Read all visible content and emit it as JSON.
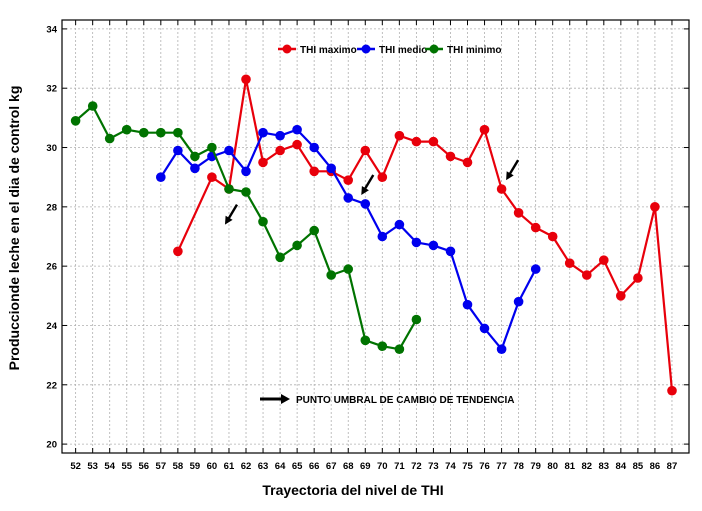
{
  "chart_data": {
    "type": "line",
    "xlabel": "Trayectoria del nivel de THI",
    "ylabel": "Produccionde leche en el dia de control kg",
    "x_ticks": [
      52,
      53,
      54,
      55,
      56,
      57,
      58,
      59,
      60,
      61,
      62,
      63,
      64,
      65,
      66,
      67,
      68,
      69,
      70,
      71,
      72,
      73,
      74,
      75,
      76,
      77,
      78,
      79,
      80,
      81,
      82,
      83,
      84,
      85,
      86,
      87
    ],
    "xlim": [
      51.2,
      88.0
    ],
    "ylim": [
      19.7,
      34.3
    ],
    "y_ticks": [
      20,
      22,
      24,
      26,
      28,
      30,
      32,
      34
    ],
    "grid": true,
    "legend_position": "top",
    "annotation": "PUNTO UMBRAL DE CAMBIO DE TENDENCIA",
    "series": [
      {
        "name": "THI maximo",
        "color": "#e8000b",
        "x": [
          58,
          60,
          61,
          62,
          63,
          64,
          65,
          66,
          67,
          68,
          69,
          70,
          71,
          72,
          73,
          74,
          75,
          76,
          77,
          78,
          79,
          80,
          81,
          82,
          83,
          84,
          85,
          86,
          87
        ],
        "values": [
          26.5,
          29.0,
          28.6,
          32.3,
          29.5,
          29.9,
          30.1,
          29.2,
          29.2,
          28.9,
          29.9,
          29.0,
          30.4,
          30.2,
          30.2,
          29.7,
          29.5,
          30.6,
          28.6,
          27.8,
          27.3,
          27.0,
          26.1,
          25.7,
          26.2,
          25.0,
          25.6,
          28.0,
          21.8
        ]
      },
      {
        "name": "THI medio",
        "color": "#0000ee",
        "x": [
          57,
          58,
          59,
          60,
          61,
          62,
          63,
          64,
          65,
          66,
          67,
          68,
          69,
          70,
          71,
          72,
          73,
          74,
          75,
          76,
          77,
          78,
          79
        ],
        "values": [
          29.0,
          29.9,
          29.3,
          29.7,
          29.9,
          29.2,
          30.5,
          30.4,
          30.6,
          30.0,
          29.3,
          28.3,
          28.1,
          27.0,
          27.4,
          26.8,
          26.7,
          26.5,
          24.7,
          23.9,
          23.2,
          24.8,
          25.9
        ]
      },
      {
        "name": "THI minimo",
        "color": "#007300",
        "x": [
          52,
          53,
          54,
          55,
          56,
          57,
          58,
          59,
          60,
          61,
          62,
          63,
          64,
          65,
          66,
          67,
          68,
          69,
          70,
          71,
          72
        ],
        "values": [
          30.9,
          31.4,
          30.3,
          30.6,
          30.5,
          30.5,
          30.5,
          29.7,
          30.0,
          28.6,
          28.5,
          27.5,
          26.3,
          26.7,
          27.2,
          25.7,
          25.9,
          23.5,
          23.3,
          23.2,
          24.2
        ]
      }
    ],
    "threshold_arrows_at_x": [
      61,
      69,
      77.5
    ]
  }
}
